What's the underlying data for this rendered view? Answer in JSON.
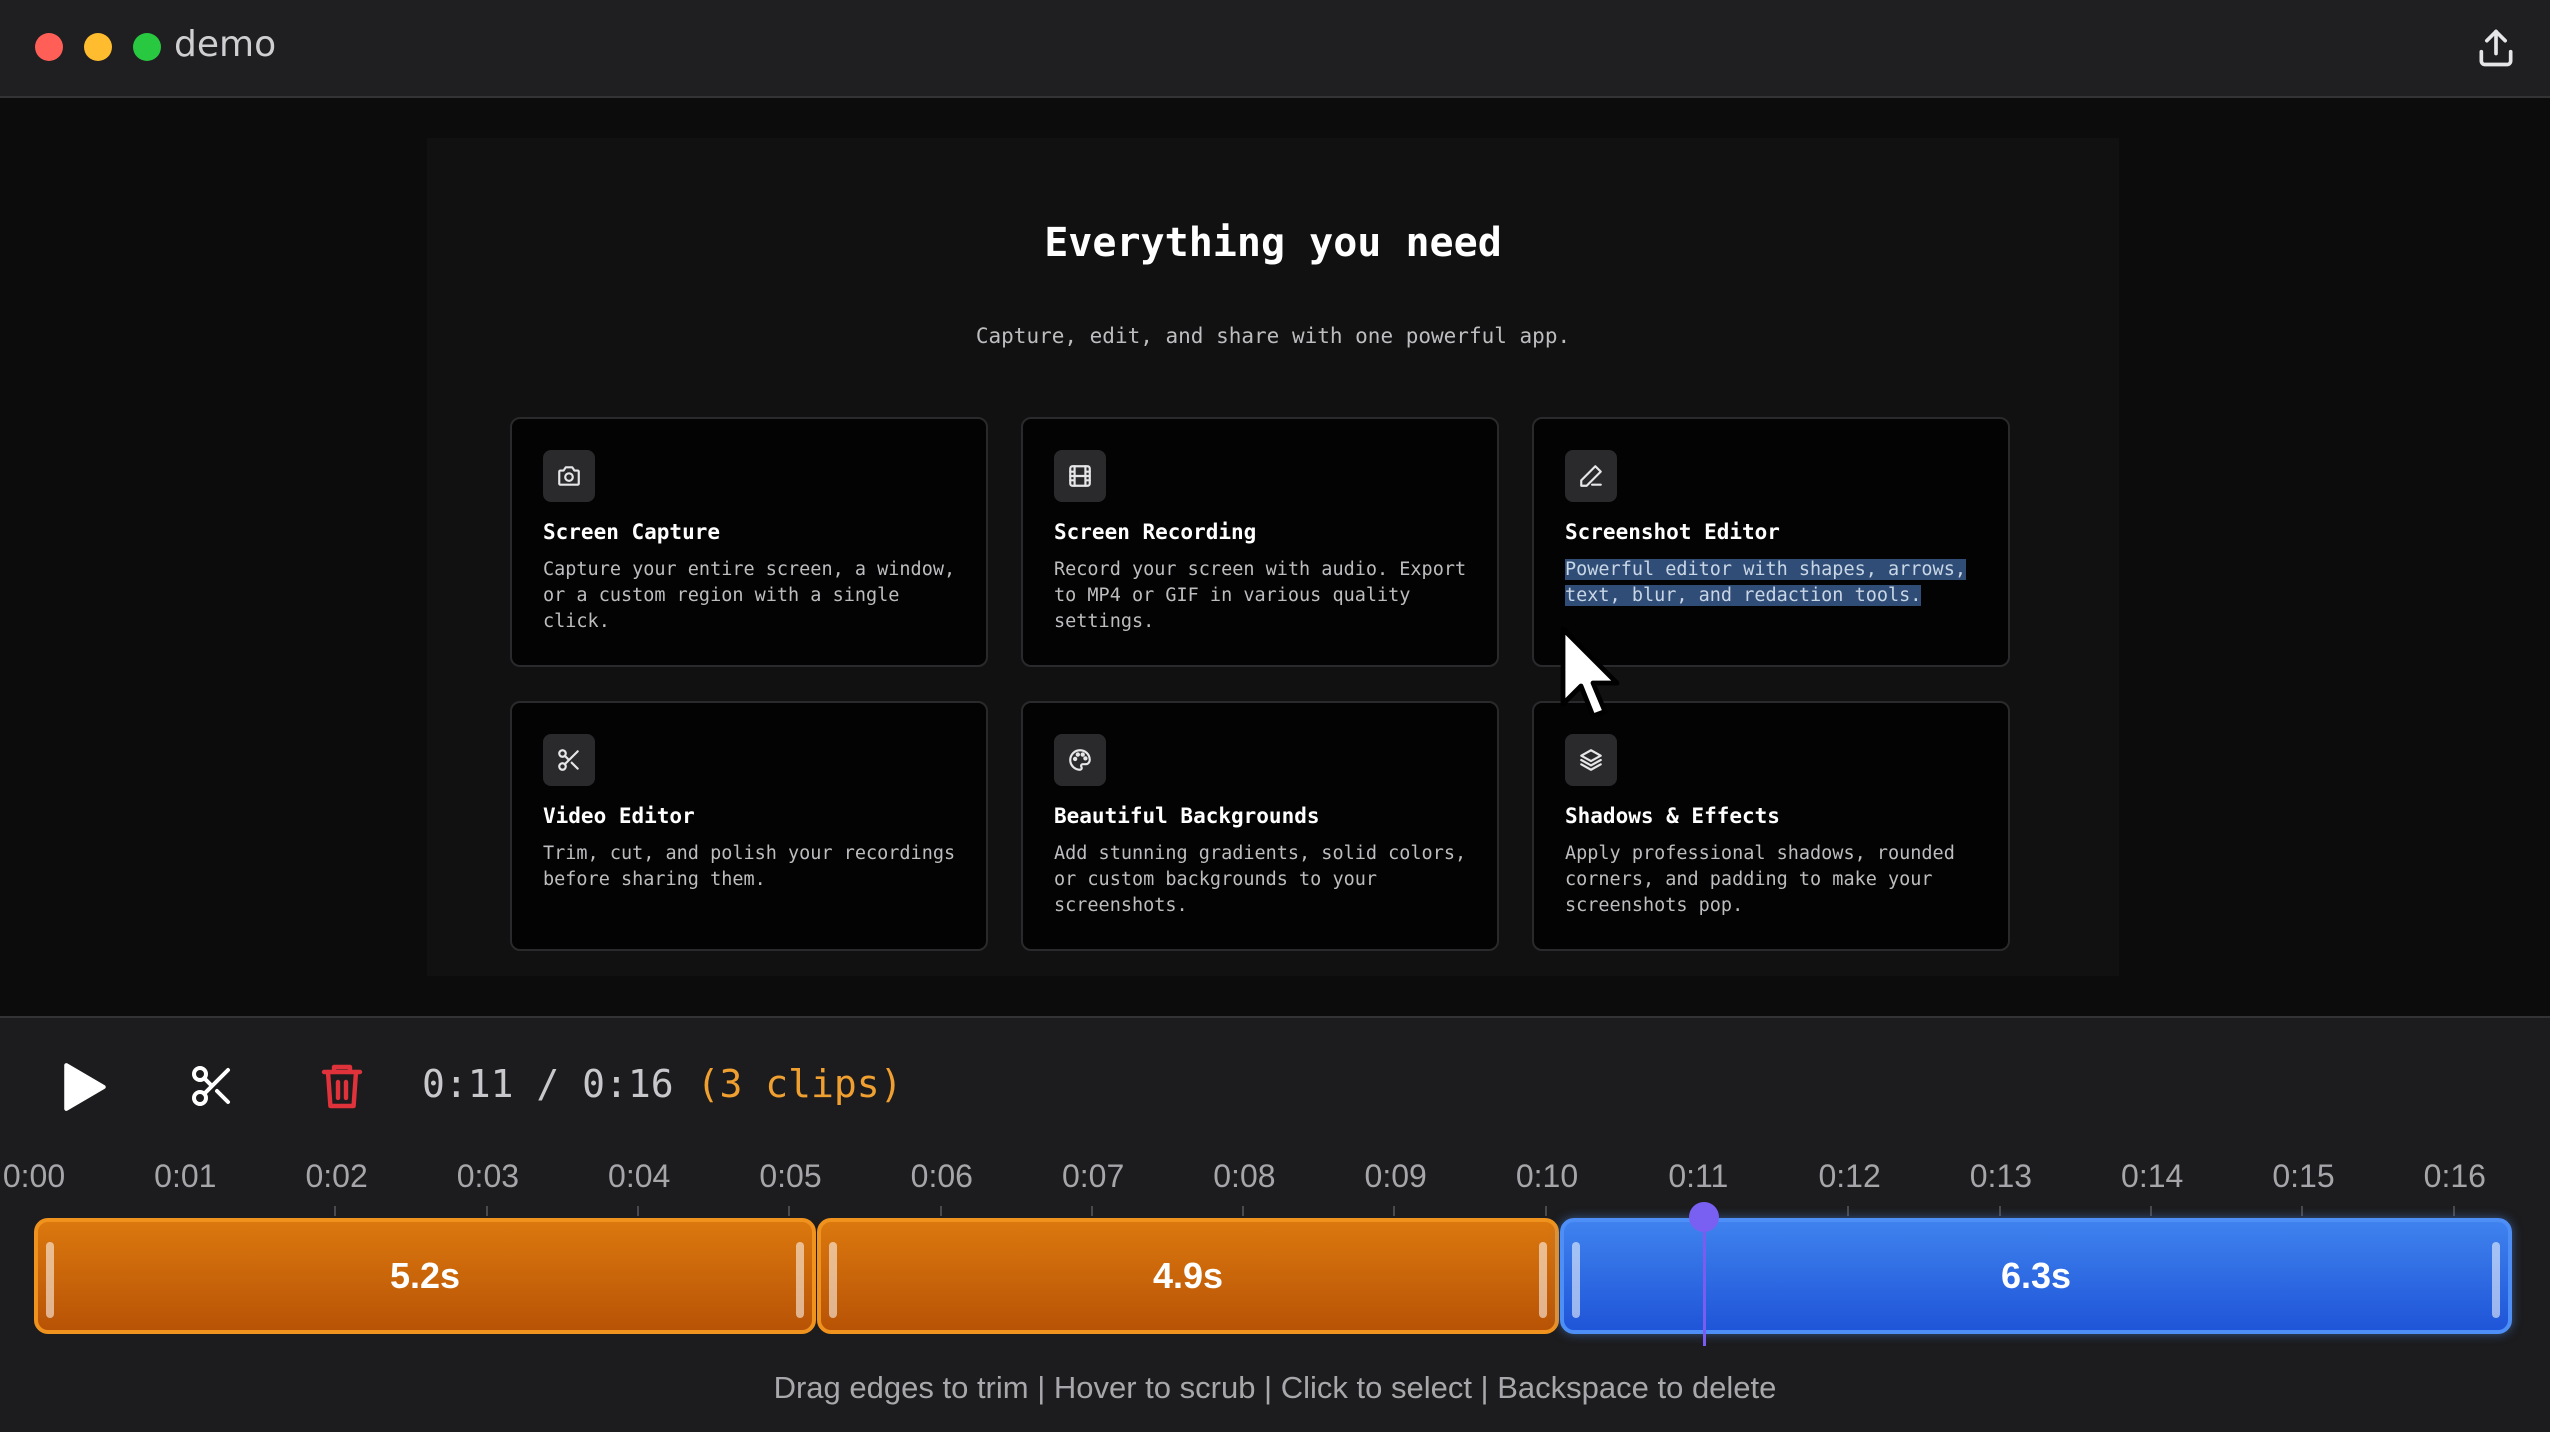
{
  "window": {
    "title": "demo"
  },
  "preview": {
    "heading": "Everything you need",
    "subheading": "Capture, edit, and share with one powerful app.",
    "cards": [
      {
        "icon": "camera-icon",
        "title": "Screen Capture",
        "desc": "Capture your entire screen, a window, or a custom region with a single click."
      },
      {
        "icon": "film-icon",
        "title": "Screen Recording",
        "desc": "Record your screen with audio. Export to MP4 or GIF in various quality settings."
      },
      {
        "icon": "pen-icon",
        "title": "Screenshot Editor",
        "desc": "Powerful editor with shapes, arrows, text, blur, and redaction tools."
      },
      {
        "icon": "scissors-icon",
        "title": "Video Editor",
        "desc": "Trim, cut, and polish your recordings before sharing them."
      },
      {
        "icon": "palette-icon",
        "title": "Beautiful Backgrounds",
        "desc": "Add stunning gradients, solid colors, or custom backgrounds to your screenshots."
      },
      {
        "icon": "layers-icon",
        "title": "Shadows & Effects",
        "desc": "Apply professional shadows, rounded corners, and padding to make your screenshots pop."
      }
    ]
  },
  "timeline": {
    "current_time": "0:11",
    "separator": " / ",
    "total_time": "0:16",
    "clips_count": "(3 clips)",
    "ruler": [
      "0:00",
      "0:01",
      "0:02",
      "0:03",
      "0:04",
      "0:05",
      "0:06",
      "0:07",
      "0:08",
      "0:09",
      "0:10",
      "0:11",
      "0:12",
      "0:13",
      "0:14",
      "0:15",
      "0:16"
    ],
    "clips": [
      {
        "label": "5.2s",
        "color": "#d9760d",
        "selected": false
      },
      {
        "label": "4.9s",
        "color": "#d9760d",
        "selected": false
      },
      {
        "label": "6.3s",
        "color": "#3a7cf0",
        "selected": true
      }
    ],
    "hint": "Drag edges to trim | Hover to scrub | Click to select | Backspace to delete"
  },
  "colors": {
    "delete": "#e0323a",
    "accent_orange": "#f0a030",
    "playhead": "#7a5cf0"
  }
}
